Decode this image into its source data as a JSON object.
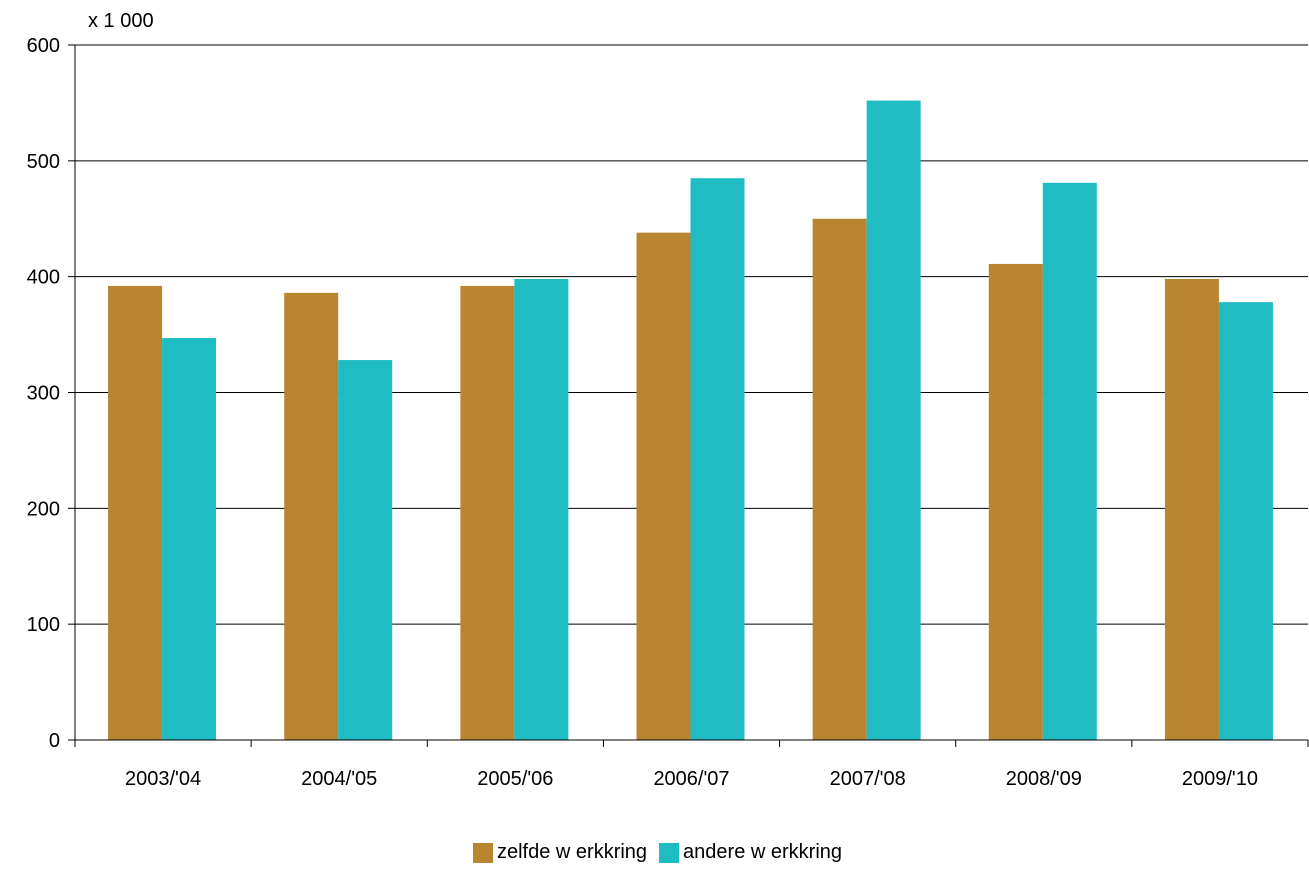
{
  "chart_data": {
    "type": "bar",
    "unit_label": "x 1 000",
    "categories": [
      "2003/'04",
      "2004/'05",
      "2005/'06",
      "2006/'07",
      "2007/'08",
      "2008/'09",
      "2009/'10"
    ],
    "series": [
      {
        "name": "zelfde w erkkring",
        "color": "#b98531",
        "values": [
          392,
          386,
          392,
          438,
          450,
          411,
          398
        ]
      },
      {
        "name": "andere w erkkring",
        "color": "#1fbcc3",
        "values": [
          347,
          328,
          398,
          485,
          552,
          481,
          378
        ]
      }
    ],
    "yticks": [
      "0",
      "100",
      "200",
      "300",
      "400",
      "500",
      "600"
    ],
    "ylim": [
      0,
      600
    ],
    "grid": true,
    "legend_position": "bottom"
  }
}
